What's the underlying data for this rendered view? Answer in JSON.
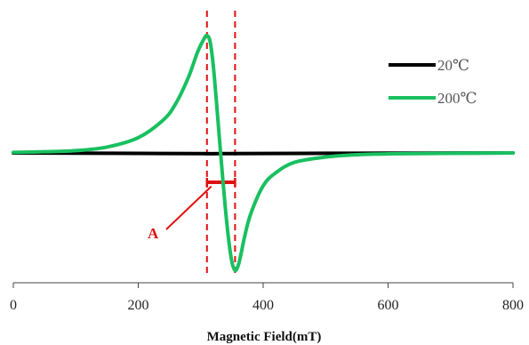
{
  "chart_data": {
    "type": "line",
    "xlabel": "Magnetic Field(mT)",
    "ylabel": "",
    "xlim": [
      0,
      800
    ],
    "xticks": [
      0,
      200,
      400,
      600,
      800
    ],
    "ylim": [
      -1.05,
      1.05
    ],
    "grid": false,
    "legend_position": "top-right",
    "series": [
      {
        "name": "20℃",
        "color": "#000000",
        "x": [
          0,
          100,
          200,
          300,
          330,
          400,
          500,
          600,
          700,
          800
        ],
        "y": [
          0,
          -0.002,
          -0.004,
          -0.006,
          -0.006,
          -0.005,
          -0.003,
          -0.002,
          -0.001,
          0
        ]
      },
      {
        "name": "200℃",
        "color": "#19c060",
        "x": [
          0,
          50,
          100,
          150,
          200,
          240,
          260,
          280,
          295,
          305,
          310,
          315,
          320,
          325,
          330,
          335,
          340,
          345,
          350,
          355,
          360,
          365,
          370,
          380,
          400,
          420,
          450,
          500,
          550,
          600,
          700,
          800
        ],
        "y": [
          0.005,
          0.01,
          0.02,
          0.05,
          0.13,
          0.28,
          0.42,
          0.64,
          0.86,
          0.97,
          1.0,
          0.95,
          0.75,
          0.45,
          0.12,
          -0.2,
          -0.5,
          -0.75,
          -0.93,
          -1.0,
          -0.96,
          -0.85,
          -0.72,
          -0.52,
          -0.28,
          -0.17,
          -0.08,
          -0.035,
          -0.015,
          -0.008,
          -0.003,
          0
        ]
      }
    ],
    "markers": {
      "vlines": [
        310,
        355
      ],
      "vline_color": "#e01010",
      "bar": {
        "x": [
          310,
          355
        ],
        "y": -0.25,
        "color": "#e01010"
      },
      "annotation": {
        "text": "A",
        "x_text": 240,
        "y_text": -0.68,
        "x_tip": 317,
        "y_tip": -0.27,
        "color": "#e01010"
      }
    }
  }
}
